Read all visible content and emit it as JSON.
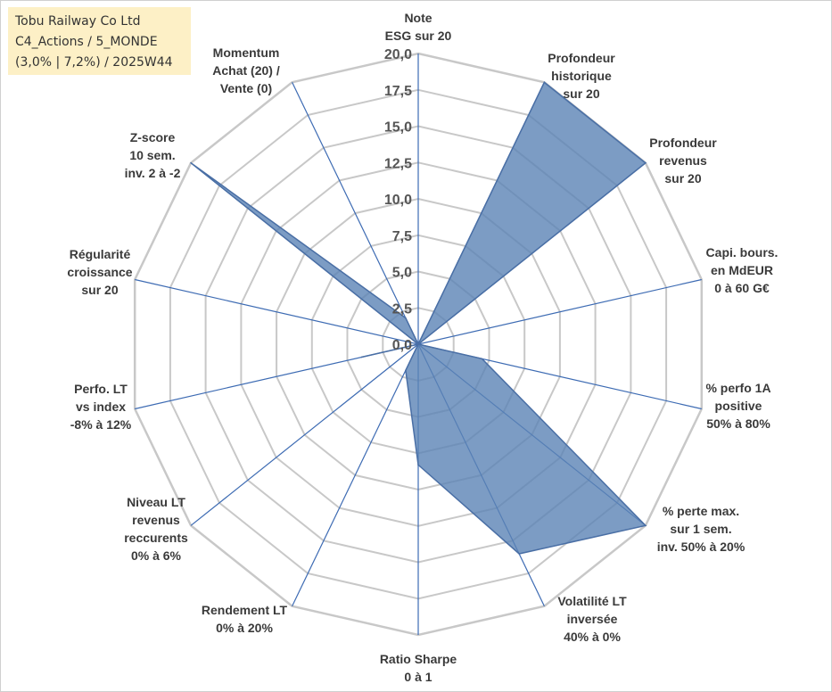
{
  "info": {
    "line1": "Tobu Railway Co Ltd",
    "line2": "C4_Actions / 5_MONDE",
    "line3": "(3,0% | 7,2%) / 2025W44"
  },
  "colors": {
    "fill": "#5b83b5",
    "stroke": "#4a6fa5",
    "grid": "#c8c8c8",
    "spoke": "#3d6bb3"
  },
  "chart_data": {
    "type": "radar",
    "title": "",
    "rmax": 20,
    "ticks": [
      "0,0",
      "2,5",
      "5,0",
      "7,5",
      "10,0",
      "12,5",
      "15,0",
      "17,5",
      "20,0"
    ],
    "axes": [
      {
        "label": [
          "Note",
          "ESG sur 20"
        ]
      },
      {
        "label": [
          "Profondeur",
          "historique",
          "sur 20"
        ]
      },
      {
        "label": [
          "Profondeur",
          "revenus",
          "sur 20"
        ]
      },
      {
        "label": [
          "Capi. bours.",
          "en MdEUR",
          "0 à 60 G€"
        ]
      },
      {
        "label": [
          "% perfo 1A",
          "positive",
          "50% à 80%"
        ]
      },
      {
        "label": [
          "% perte max.",
          "sur 1 sem.",
          "inv. 50% à 20%"
        ]
      },
      {
        "label": [
          "Volatilité LT",
          "inversée",
          "40% à 0%"
        ]
      },
      {
        "label": [
          "Ratio Sharpe",
          "0 à 1"
        ]
      },
      {
        "label": [
          "Rendement LT",
          "0% à 20%"
        ]
      },
      {
        "label": [
          "Niveau LT",
          "revenus",
          "reccurents",
          "0% à 6%"
        ]
      },
      {
        "label": [
          "Perfo. LT",
          "vs index",
          "-8% à 12%"
        ]
      },
      {
        "label": [
          "Régularité",
          "croissance",
          "sur 20"
        ]
      },
      {
        "label": [
          "Z-score",
          "10 sem.",
          "inv. 2 à -2"
        ]
      },
      {
        "label": [
          "Momentum",
          "Achat (20) /",
          "Vente (0)"
        ]
      }
    ],
    "series": [
      {
        "name": "Tobu Railway Co Ltd",
        "values": [
          0.0,
          20.0,
          20.0,
          0.0,
          4.5,
          20.0,
          16.0,
          8.3,
          2.0,
          0.0,
          4.0,
          0.0,
          20.0,
          2.0
        ]
      }
    ]
  }
}
